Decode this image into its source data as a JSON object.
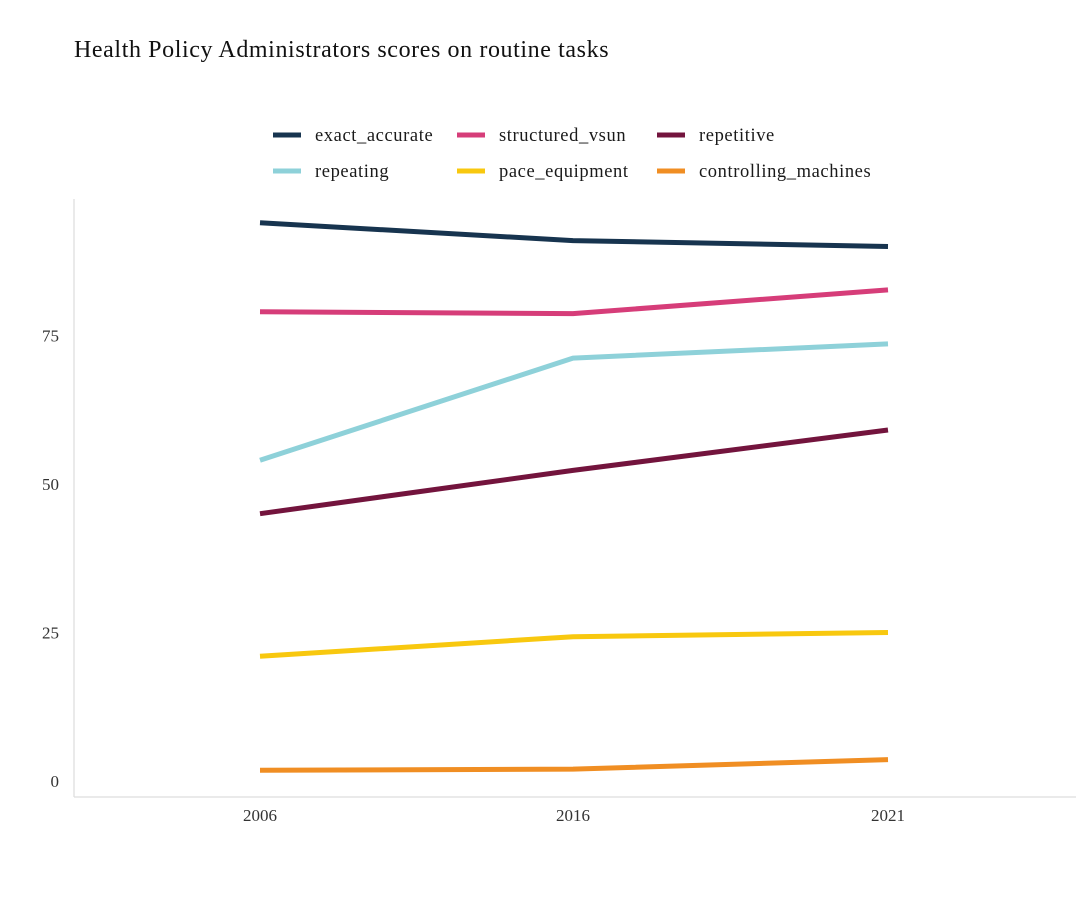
{
  "chart_data": {
    "type": "line",
    "title": "Health Policy Administrators scores on routine tasks",
    "xlabel": "",
    "ylabel": "",
    "categories": [
      "2006",
      "2016",
      "2021"
    ],
    "ylim": [
      -2.7,
      98
    ],
    "yticks": [
      0,
      25,
      50,
      75
    ],
    "grid": false,
    "legend_position": "top",
    "series": [
      {
        "name": "exact_accurate",
        "color": "#17344f",
        "values": [
          94.0,
          91.0,
          90.0
        ]
      },
      {
        "name": "structured_vsun",
        "color": "#d63d79",
        "values": [
          79.0,
          78.7,
          82.7
        ]
      },
      {
        "name": "repetitive",
        "color": "#73143d",
        "values": [
          45.0,
          52.3,
          59.1
        ]
      },
      {
        "name": "repeating",
        "color": "#8ed1d9",
        "values": [
          54.0,
          71.2,
          73.6
        ]
      },
      {
        "name": "pace_equipment",
        "color": "#f8c80f",
        "values": [
          21.0,
          24.3,
          25.0
        ]
      },
      {
        "name": "controlling_machines",
        "color": "#f08e23",
        "values": [
          1.8,
          2.0,
          3.6
        ]
      }
    ]
  }
}
